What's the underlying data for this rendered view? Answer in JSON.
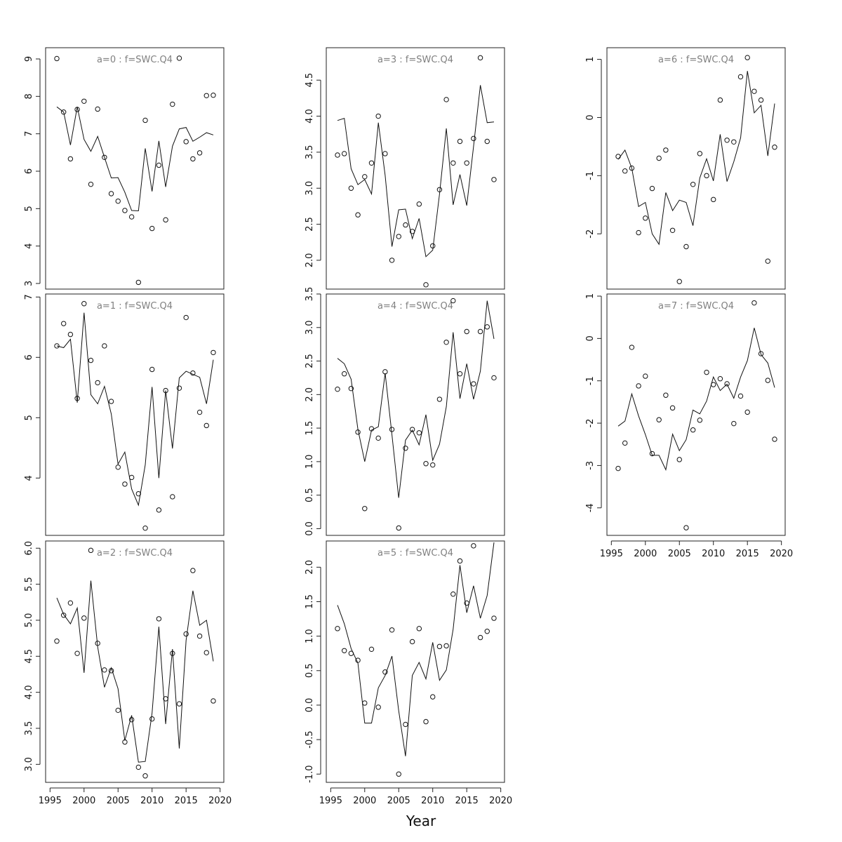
{
  "figure": {
    "xlabel": "Year"
  },
  "chart_data": [
    {
      "type": "line",
      "title": "a=0 : f=SWC.Q4",
      "x": [
        1996,
        1997,
        1998,
        1999,
        2000,
        2001,
        2002,
        2003,
        2004,
        2005,
        2006,
        2007,
        2008,
        2009,
        2010,
        2011,
        2012,
        2013,
        2014,
        2015,
        2016,
        2017,
        2018,
        2019
      ],
      "observed": [
        9.01,
        7.58,
        6.33,
        7.65,
        7.87,
        5.65,
        7.66,
        6.37,
        5.4,
        5.2,
        4.95,
        4.78,
        3.03,
        7.36,
        4.47,
        6.16,
        4.7,
        7.79,
        9.02,
        6.79,
        6.33,
        6.49,
        8.02,
        8.03
      ],
      "fitted": [
        7.72,
        7.58,
        6.7,
        7.72,
        6.85,
        6.53,
        6.93,
        6.37,
        5.82,
        5.83,
        5.44,
        4.95,
        4.94,
        6.61,
        5.46,
        6.81,
        5.58,
        6.67,
        7.13,
        7.17,
        6.8,
        6.91,
        7.03,
        6.97
      ],
      "ylim": [
        2.85,
        9.3
      ],
      "yticks": [
        "3",
        "4",
        "5",
        "6",
        "7",
        "8",
        "9"
      ],
      "ytick_values": [
        3,
        4,
        5,
        6,
        7,
        8,
        9
      ],
      "xticks": []
    },
    {
      "type": "line",
      "title": "a=1 : f=SWC.Q4",
      "x": [
        1996,
        1997,
        1998,
        1999,
        2000,
        2001,
        2002,
        2003,
        2004,
        2005,
        2006,
        2007,
        2008,
        2009,
        2010,
        2011,
        2012,
        2013,
        2014,
        2015,
        2016,
        2017,
        2018,
        2019
      ],
      "observed": [
        6.19,
        6.56,
        6.38,
        5.32,
        6.89,
        5.95,
        5.58,
        6.19,
        5.27,
        4.18,
        3.9,
        4.01,
        3.74,
        3.17,
        5.8,
        3.47,
        5.45,
        3.69,
        5.49,
        6.66,
        5.74,
        5.09,
        4.87,
        6.08
      ],
      "fitted": [
        6.19,
        6.16,
        6.3,
        5.25,
        6.74,
        5.38,
        5.23,
        5.52,
        5.06,
        4.23,
        4.43,
        3.82,
        3.55,
        4.22,
        5.51,
        4.0,
        5.45,
        4.49,
        5.66,
        5.77,
        5.72,
        5.67,
        5.23,
        5.96
      ],
      "ylim": [
        3.05,
        7.05
      ],
      "yticks": [
        "4",
        "5",
        "6",
        "7"
      ],
      "ytick_values": [
        4,
        5,
        6,
        7
      ],
      "xticks": []
    },
    {
      "type": "line",
      "title": "a=2 : f=SWC.Q4",
      "x": [
        1996,
        1997,
        1998,
        1999,
        2000,
        2001,
        2002,
        2003,
        2004,
        2005,
        2006,
        2007,
        2008,
        2009,
        2010,
        2011,
        2012,
        2013,
        2014,
        2015,
        2016,
        2017,
        2018,
        2019
      ],
      "observed": [
        4.71,
        5.07,
        5.24,
        4.54,
        5.03,
        5.97,
        4.68,
        4.31,
        4.3,
        3.75,
        3.31,
        3.62,
        2.96,
        2.84,
        3.63,
        5.02,
        3.91,
        4.54,
        3.84,
        4.81,
        5.69,
        4.78,
        4.55,
        3.88
      ],
      "fitted": [
        5.31,
        5.08,
        4.95,
        5.17,
        4.27,
        5.55,
        4.63,
        4.07,
        4.34,
        4.05,
        3.33,
        3.68,
        3.03,
        3.04,
        3.71,
        4.91,
        3.56,
        4.6,
        3.22,
        4.72,
        5.41,
        4.93,
        5.0,
        4.43
      ],
      "ylim": [
        2.75,
        6.1
      ],
      "yticks": [
        "3.0",
        "3.5",
        "4.0",
        "4.5",
        "5.0",
        "5.5",
        "6.0"
      ],
      "ytick_values": [
        3,
        3.5,
        4,
        4.5,
        5,
        5.5,
        6
      ],
      "xticks": [
        "1995",
        "2000",
        "2005",
        "2010",
        "2015",
        "2020"
      ],
      "xtick_values": [
        1995,
        2000,
        2005,
        2010,
        2015,
        2020
      ]
    },
    {
      "type": "line",
      "title": "a=3 : f=SWC.Q4",
      "x": [
        1996,
        1997,
        1998,
        1999,
        2000,
        2001,
        2002,
        2003,
        2004,
        2005,
        2006,
        2007,
        2008,
        2009,
        2010,
        2011,
        2012,
        2013,
        2014,
        2015,
        2016,
        2017,
        2018,
        2019
      ],
      "observed": [
        3.46,
        3.48,
        3.0,
        2.63,
        3.16,
        3.35,
        4.0,
        3.48,
        2.0,
        2.33,
        2.49,
        2.4,
        2.78,
        1.66,
        2.2,
        2.98,
        4.23,
        3.35,
        3.65,
        3.35,
        3.69,
        4.81,
        3.65,
        3.12
      ],
      "fitted": [
        3.94,
        3.97,
        3.27,
        3.05,
        3.12,
        2.92,
        3.91,
        3.18,
        2.19,
        2.7,
        2.71,
        2.3,
        2.58,
        2.05,
        2.14,
        2.92,
        3.83,
        2.77,
        3.19,
        2.76,
        3.58,
        4.43,
        3.91,
        3.92
      ],
      "ylim": [
        1.6,
        4.95
      ],
      "yticks": [
        "2.0",
        "2.5",
        "3.0",
        "3.5",
        "4.0",
        "4.5"
      ],
      "ytick_values": [
        2,
        2.5,
        3,
        3.5,
        4,
        4.5
      ],
      "xticks": []
    },
    {
      "type": "line",
      "title": "a=4 : f=SWC.Q4",
      "x": [
        1996,
        1997,
        1998,
        1999,
        2000,
        2001,
        2002,
        2003,
        2004,
        2005,
        2006,
        2007,
        2008,
        2009,
        2010,
        2011,
        2012,
        2013,
        2014,
        2015,
        2016,
        2017,
        2018,
        2019
      ],
      "observed": [
        2.08,
        2.31,
        2.09,
        1.44,
        0.3,
        1.49,
        1.35,
        2.34,
        1.48,
        0.01,
        1.2,
        1.48,
        1.43,
        0.97,
        0.95,
        1.93,
        2.78,
        3.4,
        2.31,
        2.94,
        2.16,
        2.94,
        3.01,
        2.25
      ],
      "fitted": [
        2.54,
        2.46,
        2.23,
        1.48,
        1.0,
        1.47,
        1.52,
        2.32,
        1.4,
        0.46,
        1.32,
        1.47,
        1.25,
        1.7,
        1.02,
        1.26,
        1.82,
        2.93,
        1.94,
        2.46,
        1.93,
        2.35,
        3.4,
        2.83
      ],
      "ylim": [
        -0.1,
        3.5
      ],
      "yticks": [
        "0.0",
        "0.5",
        "1.0",
        "1.5",
        "2.0",
        "2.5",
        "3.0",
        "3.5"
      ],
      "ytick_values": [
        0,
        0.5,
        1,
        1.5,
        2,
        2.5,
        3,
        3.5
      ],
      "xticks": []
    },
    {
      "type": "line",
      "title": "a=5 : f=SWC.Q4",
      "x": [
        1996,
        1997,
        1998,
        1999,
        2000,
        2001,
        2002,
        2003,
        2004,
        2005,
        2006,
        2007,
        2008,
        2009,
        2010,
        2011,
        2012,
        2013,
        2014,
        2015,
        2016,
        2017,
        2018,
        2019
      ],
      "observed": [
        1.11,
        0.79,
        0.75,
        0.65,
        0.03,
        0.81,
        -0.03,
        0.48,
        1.09,
        -1.0,
        -0.28,
        0.92,
        1.11,
        -0.24,
        0.12,
        0.85,
        0.86,
        1.61,
        2.09,
        1.48,
        2.31,
        0.98,
        1.07,
        1.26
      ],
      "fitted": [
        1.45,
        1.18,
        0.82,
        0.61,
        -0.26,
        -0.26,
        0.25,
        0.43,
        0.71,
        -0.08,
        -0.74,
        0.43,
        0.62,
        0.38,
        0.91,
        0.36,
        0.51,
        1.1,
        2.03,
        1.34,
        1.73,
        1.26,
        1.59,
        2.36
      ],
      "ylim": [
        -1.12,
        2.38
      ],
      "yticks": [
        "-1.0",
        "-0.5",
        "0.0",
        "0.5",
        "1.0",
        "1.5",
        "2.0"
      ],
      "ytick_values": [
        -1,
        -0.5,
        0,
        0.5,
        1,
        1.5,
        2
      ],
      "xticks": [
        "1995",
        "2000",
        "2005",
        "2010",
        "2015",
        "2020"
      ],
      "xtick_values": [
        1995,
        2000,
        2005,
        2010,
        2015,
        2020
      ]
    },
    {
      "type": "line",
      "title": "a=6 : f=SWC.Q4",
      "x": [
        1996,
        1997,
        1998,
        1999,
        2000,
        2001,
        2002,
        2003,
        2004,
        2005,
        2006,
        2007,
        2008,
        2009,
        2010,
        2011,
        2012,
        2013,
        2014,
        2015,
        2016,
        2017,
        2018,
        2019
      ],
      "observed": [
        -0.67,
        -0.92,
        -0.87,
        -1.98,
        -1.73,
        -1.22,
        -0.7,
        -0.56,
        -1.94,
        -2.82,
        -2.22,
        -1.15,
        -0.62,
        -1.0,
        -1.41,
        0.3,
        -0.39,
        -0.42,
        0.7,
        1.03,
        0.45,
        0.3,
        -2.47,
        -0.51
      ],
      "fitted": [
        -0.72,
        -0.56,
        -0.87,
        -1.53,
        -1.46,
        -2.0,
        -2.18,
        -1.29,
        -1.6,
        -1.42,
        -1.46,
        -1.86,
        -1.04,
        -0.71,
        -1.09,
        -0.29,
        -1.1,
        -0.76,
        -0.35,
        0.8,
        0.08,
        0.21,
        -0.66,
        0.24
      ],
      "ylim": [
        -2.95,
        1.2
      ],
      "yticks": [
        "-2",
        "-1",
        "0",
        "1"
      ],
      "ytick_values": [
        -2,
        -1,
        0,
        1
      ],
      "xticks": []
    },
    {
      "type": "line",
      "title": "a=7 : f=SWC.Q4",
      "x": [
        1996,
        1997,
        1998,
        1999,
        2000,
        2001,
        2002,
        2003,
        2004,
        2005,
        2006,
        2007,
        2008,
        2009,
        2010,
        2011,
        2012,
        2013,
        2014,
        2015,
        2016,
        2017,
        2018,
        2019
      ],
      "observed": [
        -3.07,
        -2.47,
        -0.21,
        -1.12,
        -0.89,
        -2.72,
        -1.92,
        -1.34,
        -1.64,
        -2.86,
        -4.47,
        -2.16,
        -1.93,
        -0.8,
        -1.09,
        -0.95,
        -1.07,
        -2.01,
        -1.36,
        -1.74,
        0.84,
        -0.36,
        -0.99,
        -2.38
      ],
      "fitted": [
        -2.07,
        -1.95,
        -1.31,
        -1.83,
        -2.27,
        -2.76,
        -2.76,
        -3.1,
        -2.26,
        -2.65,
        -2.39,
        -1.69,
        -1.78,
        -1.48,
        -0.91,
        -1.23,
        -1.08,
        -1.41,
        -0.91,
        -0.52,
        0.25,
        -0.38,
        -0.58,
        -1.16
      ],
      "ylim": [
        -4.65,
        1.05
      ],
      "yticks": [
        "-4",
        "-3",
        "-2",
        "-1",
        "0",
        "1"
      ],
      "ytick_values": [
        -4,
        -3,
        -2,
        -1,
        0,
        1
      ],
      "xticks": [
        "1995",
        "2000",
        "2005",
        "2010",
        "2015",
        "2020"
      ],
      "xtick_values": [
        1995,
        2000,
        2005,
        2010,
        2015,
        2020
      ]
    }
  ]
}
